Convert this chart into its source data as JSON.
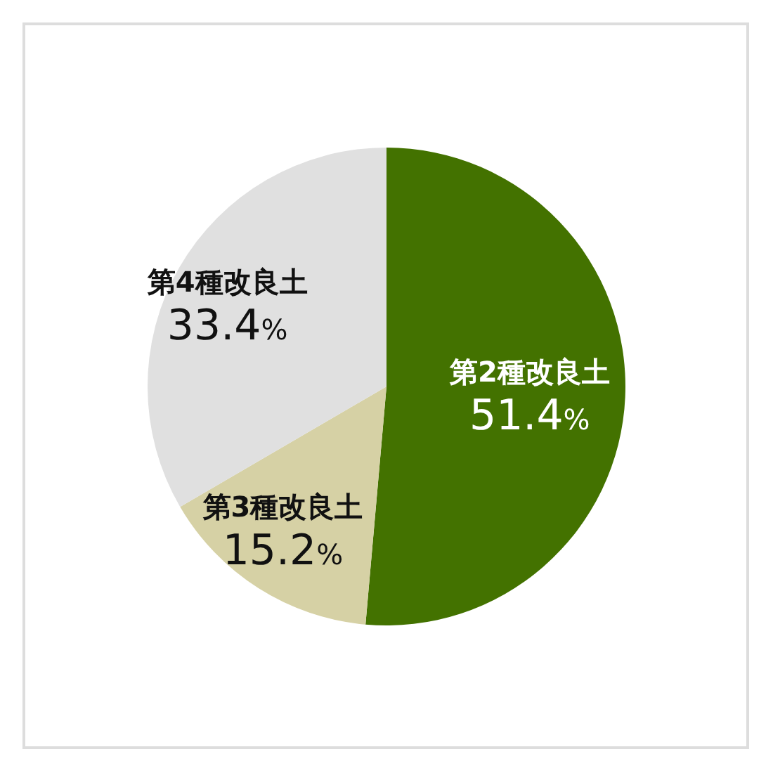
{
  "chart_data": {
    "type": "pie",
    "categories": [
      "第2種改良土",
      "第3種改良土",
      "第4種改良土"
    ],
    "values": [
      51.4,
      15.2,
      33.4
    ],
    "value_labels": [
      "51.4%",
      "15.2%",
      "33.4%"
    ],
    "colors": [
      "#437200",
      "#d6d1a5",
      "#e0e0e0"
    ]
  }
}
